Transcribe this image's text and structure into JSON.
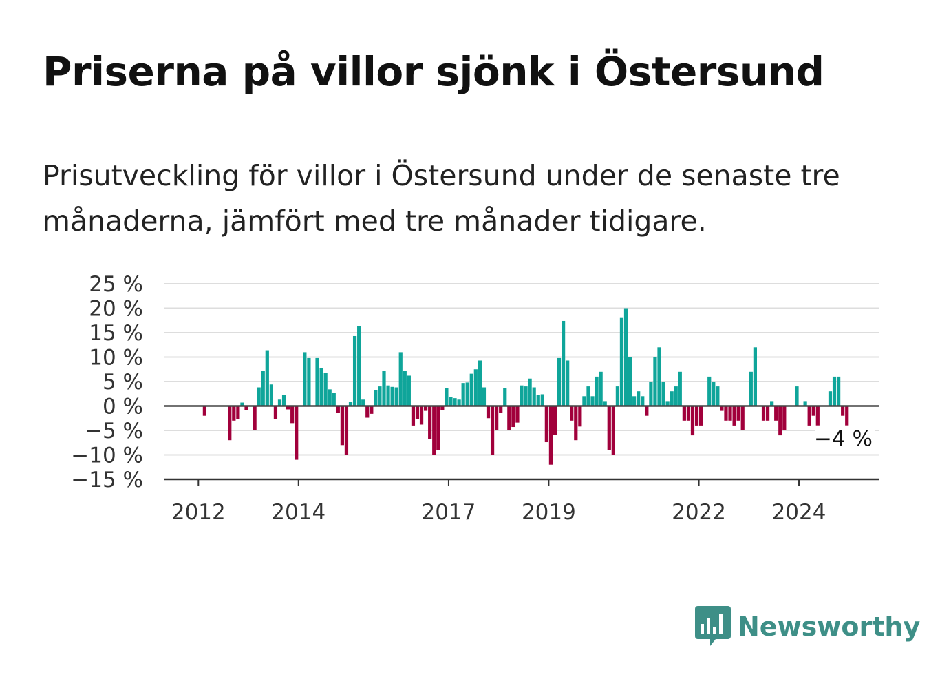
{
  "header": {
    "title": "Priserna på villor sjönk i Östersund",
    "subtitle": "Prisutveckling för villor i Östersund under de senaste tre månaderna, jämfört med tre månader tidigare."
  },
  "brand": {
    "name": "Newsworthy"
  },
  "colors": {
    "positive": "#0fa59a",
    "negative": "#a1003b",
    "brand": "#3e8f87"
  },
  "chart_data": {
    "type": "bar",
    "title": "",
    "xlabel": "",
    "ylabel": "",
    "ylim": [
      -15,
      25
    ],
    "yticks": [
      25,
      20,
      15,
      10,
      5,
      0,
      -5,
      -10,
      -15
    ],
    "ytick_labels": [
      "25 %",
      "20 %",
      "15 %",
      "10 %",
      "5 %",
      "0 %",
      "−5 %",
      "−10 %",
      "−15 %"
    ],
    "xticks": [
      {
        "label": "2012",
        "year": 2012
      },
      {
        "label": "2014",
        "year": 2014
      },
      {
        "label": "2017",
        "year": 2017
      },
      {
        "label": "2019",
        "year": 2019
      },
      {
        "label": "2022",
        "year": 2022
      },
      {
        "label": "2024",
        "year": 2024
      }
    ],
    "grid": true,
    "last_value_label": "−4 %",
    "series": [
      {
        "values": [
          {
            "date": "2012-03",
            "value": -2
          },
          {
            "date": "2012-09",
            "value": -7
          },
          {
            "date": "2012-10",
            "value": -3
          },
          {
            "date": "2012-11",
            "value": -2.7
          },
          {
            "date": "2012-12",
            "value": 0.7
          },
          {
            "date": "2013-01",
            "value": -0.8
          },
          {
            "date": "2013-03",
            "value": -5
          },
          {
            "date": "2013-04",
            "value": 3.8
          },
          {
            "date": "2013-05",
            "value": 7.2
          },
          {
            "date": "2013-06",
            "value": 11.4
          },
          {
            "date": "2013-07",
            "value": 4.4
          },
          {
            "date": "2013-08",
            "value": -2.7
          },
          {
            "date": "2013-09",
            "value": 1.3
          },
          {
            "date": "2013-10",
            "value": 2.2
          },
          {
            "date": "2013-11",
            "value": -0.7
          },
          {
            "date": "2013-12",
            "value": -3.5
          },
          {
            "date": "2014-01",
            "value": -11
          },
          {
            "date": "2014-03",
            "value": 11
          },
          {
            "date": "2014-04",
            "value": 9.8
          },
          {
            "date": "2014-06",
            "value": 9.8
          },
          {
            "date": "2014-07",
            "value": 7.8
          },
          {
            "date": "2014-08",
            "value": 6.8
          },
          {
            "date": "2014-09",
            "value": 3.4
          },
          {
            "date": "2014-10",
            "value": 2.7
          },
          {
            "date": "2014-11",
            "value": -1.4
          },
          {
            "date": "2014-12",
            "value": -8
          },
          {
            "date": "2015-01",
            "value": -10
          },
          {
            "date": "2015-02",
            "value": 0.8
          },
          {
            "date": "2015-03",
            "value": 14.3
          },
          {
            "date": "2015-04",
            "value": 16.4
          },
          {
            "date": "2015-05",
            "value": 1.3
          },
          {
            "date": "2015-06",
            "value": -2.4
          },
          {
            "date": "2015-07",
            "value": -1.6
          },
          {
            "date": "2015-08",
            "value": 3.3
          },
          {
            "date": "2015-09",
            "value": 4
          },
          {
            "date": "2015-10",
            "value": 7.2
          },
          {
            "date": "2015-11",
            "value": 4.2
          },
          {
            "date": "2015-12",
            "value": 3.9
          },
          {
            "date": "2016-01",
            "value": 3.8
          },
          {
            "date": "2016-02",
            "value": 11
          },
          {
            "date": "2016-03",
            "value": 7.2
          },
          {
            "date": "2016-04",
            "value": 6.2
          },
          {
            "date": "2016-05",
            "value": -4
          },
          {
            "date": "2016-06",
            "value": -2.7
          },
          {
            "date": "2016-07",
            "value": -3.8
          },
          {
            "date": "2016-08",
            "value": -1
          },
          {
            "date": "2016-09",
            "value": -6.8
          },
          {
            "date": "2016-10",
            "value": -10
          },
          {
            "date": "2016-11",
            "value": -9
          },
          {
            "date": "2016-12",
            "value": -0.8
          },
          {
            "date": "2017-01",
            "value": 3.7
          },
          {
            "date": "2017-02",
            "value": 1.8
          },
          {
            "date": "2017-03",
            "value": 1.6
          },
          {
            "date": "2017-04",
            "value": 1.3
          },
          {
            "date": "2017-05",
            "value": 4.7
          },
          {
            "date": "2017-06",
            "value": 4.8
          },
          {
            "date": "2017-07",
            "value": 6.6
          },
          {
            "date": "2017-08",
            "value": 7.5
          },
          {
            "date": "2017-09",
            "value": 9.3
          },
          {
            "date": "2017-10",
            "value": 3.8
          },
          {
            "date": "2017-11",
            "value": -2.5
          },
          {
            "date": "2017-12",
            "value": -10
          },
          {
            "date": "2018-01",
            "value": -5
          },
          {
            "date": "2018-02",
            "value": -1.4
          },
          {
            "date": "2018-03",
            "value": 3.6
          },
          {
            "date": "2018-04",
            "value": -5
          },
          {
            "date": "2018-05",
            "value": -4.3
          },
          {
            "date": "2018-06",
            "value": -3.4
          },
          {
            "date": "2018-07",
            "value": 4.2
          },
          {
            "date": "2018-08",
            "value": 4
          },
          {
            "date": "2018-09",
            "value": 5.6
          },
          {
            "date": "2018-10",
            "value": 3.8
          },
          {
            "date": "2018-11",
            "value": 2.2
          },
          {
            "date": "2018-12",
            "value": 2.4
          },
          {
            "date": "2019-01",
            "value": -7.4
          },
          {
            "date": "2019-02",
            "value": -12
          },
          {
            "date": "2019-03",
            "value": -5.9
          },
          {
            "date": "2019-04",
            "value": 9.8
          },
          {
            "date": "2019-05",
            "value": 17.4
          },
          {
            "date": "2019-06",
            "value": 9.3
          },
          {
            "date": "2019-07",
            "value": -3
          },
          {
            "date": "2019-08",
            "value": -7
          },
          {
            "date": "2019-09",
            "value": -4.2
          },
          {
            "date": "2019-10",
            "value": 2
          },
          {
            "date": "2019-11",
            "value": 4
          },
          {
            "date": "2019-12",
            "value": 2
          },
          {
            "date": "2020-01",
            "value": 6
          },
          {
            "date": "2020-02",
            "value": 7
          },
          {
            "date": "2020-03",
            "value": 1
          },
          {
            "date": "2020-04",
            "value": -9
          },
          {
            "date": "2020-05",
            "value": -10
          },
          {
            "date": "2020-06",
            "value": 4
          },
          {
            "date": "2020-07",
            "value": 18
          },
          {
            "date": "2020-08",
            "value": 20
          },
          {
            "date": "2020-09",
            "value": 10
          },
          {
            "date": "2020-10",
            "value": 2
          },
          {
            "date": "2020-11",
            "value": 3
          },
          {
            "date": "2020-12",
            "value": 2
          },
          {
            "date": "2021-01",
            "value": -2
          },
          {
            "date": "2021-02",
            "value": 5
          },
          {
            "date": "2021-03",
            "value": 10
          },
          {
            "date": "2021-04",
            "value": 12
          },
          {
            "date": "2021-05",
            "value": 5
          },
          {
            "date": "2021-06",
            "value": 1
          },
          {
            "date": "2021-07",
            "value": 3
          },
          {
            "date": "2021-08",
            "value": 4
          },
          {
            "date": "2021-09",
            "value": 7
          },
          {
            "date": "2021-10",
            "value": -3
          },
          {
            "date": "2021-11",
            "value": -3
          },
          {
            "date": "2021-12",
            "value": -6
          },
          {
            "date": "2022-01",
            "value": -4
          },
          {
            "date": "2022-02",
            "value": -4
          },
          {
            "date": "2022-04",
            "value": 6
          },
          {
            "date": "2022-05",
            "value": 5
          },
          {
            "date": "2022-06",
            "value": 4
          },
          {
            "date": "2022-07",
            "value": -1
          },
          {
            "date": "2022-08",
            "value": -3
          },
          {
            "date": "2022-09",
            "value": -3
          },
          {
            "date": "2022-10",
            "value": -4
          },
          {
            "date": "2022-11",
            "value": -3
          },
          {
            "date": "2022-12",
            "value": -5
          },
          {
            "date": "2023-02",
            "value": 7
          },
          {
            "date": "2023-03",
            "value": 12
          },
          {
            "date": "2023-05",
            "value": -3
          },
          {
            "date": "2023-06",
            "value": -3
          },
          {
            "date": "2023-07",
            "value": 1
          },
          {
            "date": "2023-08",
            "value": -3
          },
          {
            "date": "2023-09",
            "value": -6
          },
          {
            "date": "2023-10",
            "value": -5
          },
          {
            "date": "2024-01",
            "value": 4
          },
          {
            "date": "2024-03",
            "value": 1
          },
          {
            "date": "2024-04",
            "value": -4
          },
          {
            "date": "2024-05",
            "value": -2
          },
          {
            "date": "2024-06",
            "value": -5
          },
          {
            "date": "2024-09",
            "value": 3
          },
          {
            "date": "2024-10",
            "value": 6
          },
          {
            "date": "2024-11",
            "value": 6
          },
          {
            "date": "2024-12",
            "value": -2
          },
          {
            "date": "2025-01",
            "value": -4
          }
        ]
      }
    ]
  }
}
